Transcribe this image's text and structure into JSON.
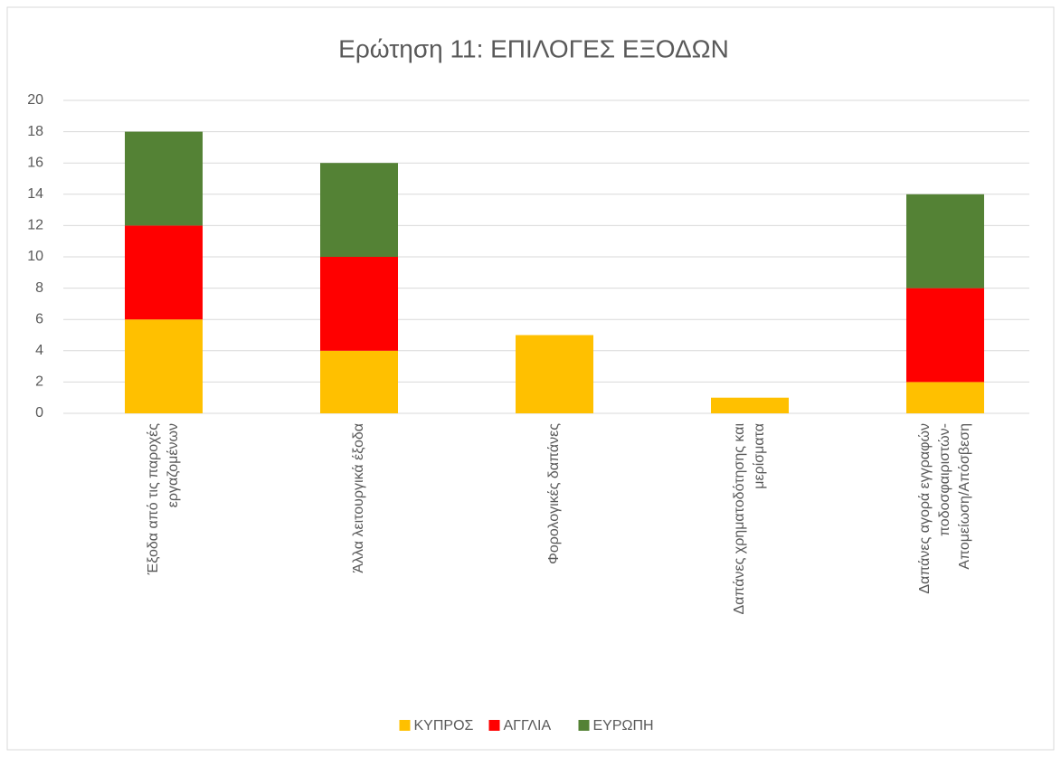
{
  "chart_data": {
    "type": "bar",
    "stacked": true,
    "title": "Ερώτηση 11: ΕΠΙΛΟΓΕΣ ΕΞΟΔΩΝ",
    "categories": [
      "Έξοδα από τις παροχές εργαζομένων",
      "Άλλα λειτουργικά έξοδα",
      "Φορολογικές δαπάνες",
      "Δαπάνες χρηματοδότησης και μερίσματα",
      "Δαπάνες αγορά εγγραφών ποδοσφαιριστών-Απομείωση/Απόσβεση"
    ],
    "series": [
      {
        "name": "ΚΥΠΡΟΣ",
        "color": "#ffc000",
        "values": [
          6,
          4,
          5,
          1,
          2
        ]
      },
      {
        "name": "ΑΓΓΛΙΑ",
        "color": "#ff0000",
        "values": [
          6,
          6,
          0,
          0,
          6
        ]
      },
      {
        "name": "ΕΥΡΩΠΗ",
        "color": "#548235",
        "values": [
          6,
          6,
          0,
          0,
          6
        ]
      }
    ],
    "ylim": [
      0,
      20
    ],
    "yticks": [
      0,
      2,
      4,
      6,
      8,
      10,
      12,
      14,
      16,
      18,
      20
    ],
    "grid": true,
    "legend": "bottom"
  }
}
